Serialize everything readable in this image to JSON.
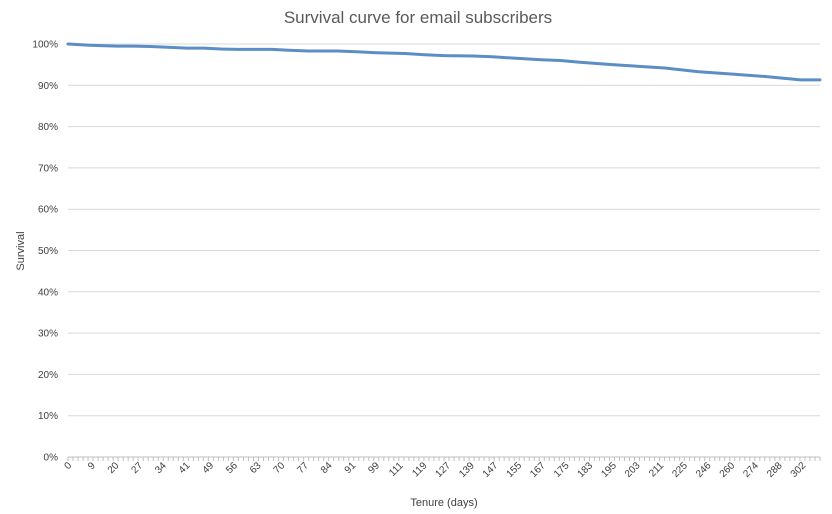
{
  "chart_data": {
    "type": "line",
    "title": "Survival curve for email subscribers",
    "xlabel": "Tenure (days)",
    "ylabel": "Survival",
    "ylim": [
      0,
      1
    ],
    "xlim": [
      0,
      310
    ],
    "grid": true,
    "legend": "none",
    "color": "#5b8ec4",
    "y_ticks": [
      "0%",
      "10%",
      "20%",
      "30%",
      "40%",
      "50%",
      "60%",
      "70%",
      "80%",
      "90%",
      "100%"
    ],
    "x_ticks": [
      "0",
      "9",
      "20",
      "27",
      "34",
      "41",
      "49",
      "56",
      "63",
      "70",
      "77",
      "84",
      "91",
      "99",
      "111",
      "119",
      "127",
      "139",
      "147",
      "155",
      "167",
      "175",
      "183",
      "195",
      "203",
      "211",
      "225",
      "246",
      "260",
      "274",
      "288",
      "302"
    ],
    "series": [
      {
        "x": [
          0,
          9,
          20,
          27,
          34,
          41,
          49,
          56,
          63,
          70,
          77,
          84,
          91,
          99,
          111,
          119,
          127,
          139,
          147,
          155,
          167,
          175,
          183,
          195,
          203,
          211,
          225,
          246,
          260,
          274,
          288,
          302,
          310
        ],
        "y": [
          1.0,
          0.997,
          0.995,
          0.995,
          0.994,
          0.992,
          0.99,
          0.99,
          0.988,
          0.987,
          0.987,
          0.987,
          0.985,
          0.983,
          0.983,
          0.981,
          0.979,
          0.977,
          0.974,
          0.972,
          0.971,
          0.969,
          0.966,
          0.962,
          0.96,
          0.956,
          0.95,
          0.942,
          0.933,
          0.927,
          0.921,
          0.913,
          0.913
        ]
      }
    ]
  }
}
